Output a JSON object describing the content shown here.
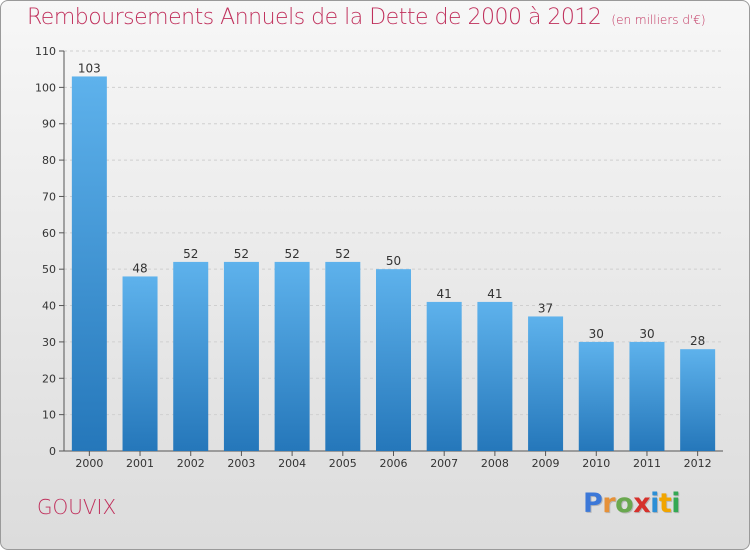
{
  "title": "Remboursements Annuels de la Dette de 2000 à 2012",
  "subtitle": "(en milliers d'€)",
  "commune": "GOUVIX",
  "logo": {
    "text": "Proxiti",
    "letter_colors": [
      "#3c78d8",
      "#e69138",
      "#6aa84f",
      "#d6312c",
      "#2c8fd6",
      "#f1a500",
      "#34a853"
    ]
  },
  "colors": {
    "title": "#c0305c",
    "bar_top": "#5eb2ec",
    "bar_bottom": "#2577ba",
    "grid": "#cfcfcf",
    "text": "#333333"
  },
  "chart_data": {
    "type": "bar",
    "title": "Remboursements Annuels de la Dette de 2000 à 2012",
    "subtitle": "(en milliers d'€)",
    "categories": [
      "2000",
      "2001",
      "2002",
      "2003",
      "2004",
      "2005",
      "2006",
      "2007",
      "2008",
      "2009",
      "2010",
      "2011",
      "2012"
    ],
    "values": [
      103,
      48,
      52,
      52,
      52,
      52,
      50,
      41,
      41,
      37,
      30,
      30,
      28
    ],
    "ylim": [
      0,
      110
    ],
    "yticks": [
      0,
      10,
      20,
      30,
      40,
      50,
      60,
      70,
      80,
      90,
      100,
      110
    ],
    "grid": "horizontal dashed",
    "legend": "none"
  }
}
